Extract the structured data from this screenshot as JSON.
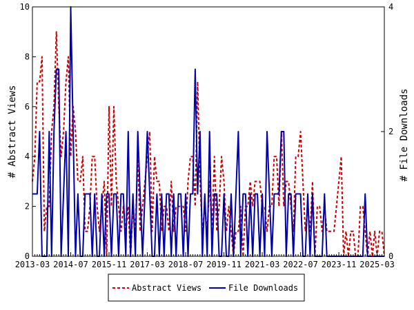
{
  "chart_data": {
    "type": "line",
    "title": "",
    "xlabel": "",
    "ylabel_left": "# Abstract Views",
    "ylabel_right": "# File Downloads",
    "x_start": "2013-03",
    "x_end": "2025-06",
    "x_tick_labels": [
      "2013-03",
      "2014-07",
      "2015-11",
      "2017-03",
      "2018-07",
      "2019-11",
      "2021-03",
      "2022-07",
      "2023-11",
      "2025-03"
    ],
    "ylim_left": [
      0,
      10
    ],
    "yticks_left": [
      "0",
      "2",
      "4",
      "6",
      "8",
      "10"
    ],
    "ylim_right": [
      0,
      4
    ],
    "yticks_right": [
      "0",
      "2",
      "4"
    ],
    "legend_position": "bottom-center",
    "grid": false,
    "series": [
      {
        "name": "Abstract Views",
        "axis": "left",
        "color": "#cc0000",
        "style": "dashed",
        "points": [
          [
            "2013-03",
            3
          ],
          [
            "2013-04",
            4
          ],
          [
            "2013-05",
            7
          ],
          [
            "2013-06",
            7
          ],
          [
            "2013-07",
            8
          ],
          [
            "2013-08",
            1
          ],
          [
            "2013-09",
            2
          ],
          [
            "2013-10",
            2
          ],
          [
            "2013-11",
            5
          ],
          [
            "2013-12",
            6
          ],
          [
            "2014-01",
            9
          ],
          [
            "2014-02",
            6
          ],
          [
            "2014-03",
            4
          ],
          [
            "2014-04",
            5
          ],
          [
            "2014-05",
            7
          ],
          [
            "2014-06",
            8
          ],
          [
            "2014-07",
            4
          ],
          [
            "2014-08",
            6
          ],
          [
            "2014-09",
            5
          ],
          [
            "2014-10",
            3
          ],
          [
            "2014-11",
            3
          ],
          [
            "2014-12",
            4
          ],
          [
            "2015-01",
            1
          ],
          [
            "2015-02",
            1
          ],
          [
            "2015-03",
            2
          ],
          [
            "2015-04",
            4
          ],
          [
            "2015-05",
            4
          ],
          [
            "2015-06",
            2
          ],
          [
            "2015-07",
            1
          ],
          [
            "2015-08",
            2
          ],
          [
            "2015-09",
            3
          ],
          [
            "2015-10",
            0
          ],
          [
            "2015-11",
            6
          ],
          [
            "2015-12",
            2
          ],
          [
            "2016-01",
            6
          ],
          [
            "2016-02",
            3
          ],
          [
            "2016-03",
            2
          ],
          [
            "2016-04",
            1
          ],
          [
            "2016-05",
            2
          ],
          [
            "2016-06",
            1
          ],
          [
            "2016-07",
            2
          ],
          [
            "2016-08",
            0
          ],
          [
            "2016-09",
            2
          ],
          [
            "2016-10",
            1
          ],
          [
            "2016-11",
            4
          ],
          [
            "2016-12",
            1
          ],
          [
            "2017-01",
            2
          ],
          [
            "2017-02",
            3
          ],
          [
            "2017-03",
            4
          ],
          [
            "2017-04",
            5
          ],
          [
            "2017-05",
            1
          ],
          [
            "2017-06",
            4
          ],
          [
            "2017-07",
            3
          ],
          [
            "2017-08",
            3
          ],
          [
            "2017-09",
            1
          ],
          [
            "2017-10",
            2
          ],
          [
            "2017-11",
            2
          ],
          [
            "2017-12",
            1
          ],
          [
            "2018-01",
            3
          ],
          [
            "2018-02",
            1
          ],
          [
            "2018-03",
            2
          ],
          [
            "2018-04",
            2
          ],
          [
            "2018-05",
            2
          ],
          [
            "2018-06",
            2
          ],
          [
            "2018-07",
            1
          ],
          [
            "2018-08",
            3
          ],
          [
            "2018-09",
            4
          ],
          [
            "2018-10",
            4
          ],
          [
            "2018-11",
            2
          ],
          [
            "2018-12",
            7
          ],
          [
            "2019-01",
            3
          ],
          [
            "2019-02",
            1
          ],
          [
            "2019-03",
            2
          ],
          [
            "2019-04",
            1
          ],
          [
            "2019-05",
            3
          ],
          [
            "2019-06",
            1
          ],
          [
            "2019-07",
            4
          ],
          [
            "2019-08",
            1
          ],
          [
            "2019-09",
            2
          ],
          [
            "2019-10",
            4
          ],
          [
            "2019-11",
            3
          ],
          [
            "2019-12",
            1
          ],
          [
            "2020-01",
            2
          ],
          [
            "2020-02",
            1
          ],
          [
            "2020-03",
            0
          ],
          [
            "2020-04",
            1
          ],
          [
            "2020-05",
            1
          ],
          [
            "2020-06",
            2
          ],
          [
            "2020-07",
            0
          ],
          [
            "2020-08",
            2
          ],
          [
            "2020-09",
            2
          ],
          [
            "2020-10",
            3
          ],
          [
            "2020-11",
            2
          ],
          [
            "2020-12",
            3
          ],
          [
            "2021-01",
            3
          ],
          [
            "2021-02",
            3
          ],
          [
            "2021-03",
            2
          ],
          [
            "2021-04",
            2
          ],
          [
            "2021-05",
            1
          ],
          [
            "2021-06",
            2
          ],
          [
            "2021-07",
            2
          ],
          [
            "2021-08",
            4
          ],
          [
            "2021-09",
            4
          ],
          [
            "2021-10",
            2
          ],
          [
            "2021-11",
            5
          ],
          [
            "2021-12",
            2
          ],
          [
            "2022-01",
            3
          ],
          [
            "2022-02",
            3
          ],
          [
            "2022-03",
            2
          ],
          [
            "2022-04",
            1
          ],
          [
            "2022-05",
            4
          ],
          [
            "2022-06",
            4
          ],
          [
            "2022-07",
            5
          ],
          [
            "2022-08",
            3
          ],
          [
            "2022-09",
            1
          ],
          [
            "2022-10",
            2
          ],
          [
            "2022-11",
            1
          ],
          [
            "2022-12",
            3
          ],
          [
            "2023-01",
            0
          ],
          [
            "2023-02",
            2
          ],
          [
            "2023-03",
            2
          ],
          [
            "2023-04",
            1
          ],
          [
            "2023-05",
            2
          ],
          [
            "2023-06",
            1
          ],
          [
            "2023-07",
            1
          ],
          [
            "2023-08",
            1
          ],
          [
            "2023-09",
            1
          ],
          [
            "2023-10",
            2
          ],
          [
            "2023-11",
            3
          ],
          [
            "2023-12",
            4
          ],
          [
            "2024-01",
            0
          ],
          [
            "2024-02",
            1
          ],
          [
            "2024-03",
            0
          ],
          [
            "2024-04",
            1
          ],
          [
            "2024-05",
            1
          ],
          [
            "2024-06",
            0
          ],
          [
            "2024-07",
            0
          ],
          [
            "2024-08",
            2
          ],
          [
            "2024-09",
            2
          ],
          [
            "2024-10",
            1
          ],
          [
            "2024-11",
            0
          ],
          [
            "2024-12",
            1
          ],
          [
            "2025-01",
            0
          ],
          [
            "2025-02",
            1
          ],
          [
            "2025-03",
            0
          ],
          [
            "2025-04",
            1
          ],
          [
            "2025-05",
            1
          ],
          [
            "2025-06",
            0
          ]
        ]
      },
      {
        "name": "File Downloads",
        "axis": "right",
        "color": "#0000aa",
        "style": "solid",
        "points": [
          [
            "2013-03",
            1
          ],
          [
            "2013-04",
            1
          ],
          [
            "2013-05",
            1
          ],
          [
            "2013-06",
            2
          ],
          [
            "2013-07",
            0
          ],
          [
            "2013-08",
            0
          ],
          [
            "2013-09",
            0
          ],
          [
            "2013-10",
            2
          ],
          [
            "2013-11",
            0
          ],
          [
            "2013-12",
            2
          ],
          [
            "2014-01",
            3
          ],
          [
            "2014-02",
            3
          ],
          [
            "2014-03",
            0
          ],
          [
            "2014-04",
            1
          ],
          [
            "2014-05",
            2
          ],
          [
            "2014-06",
            0
          ],
          [
            "2014-07",
            4
          ],
          [
            "2014-08",
            2
          ],
          [
            "2014-09",
            0
          ],
          [
            "2014-10",
            1
          ],
          [
            "2014-11",
            0
          ],
          [
            "2014-12",
            0
          ],
          [
            "2015-01",
            1
          ],
          [
            "2015-02",
            1
          ],
          [
            "2015-03",
            1
          ],
          [
            "2015-04",
            0
          ],
          [
            "2015-05",
            1
          ],
          [
            "2015-06",
            0
          ],
          [
            "2015-07",
            0
          ],
          [
            "2015-08",
            1
          ],
          [
            "2015-09",
            0
          ],
          [
            "2015-10",
            1
          ],
          [
            "2015-11",
            1
          ],
          [
            "2015-12",
            0
          ],
          [
            "2016-01",
            1
          ],
          [
            "2016-02",
            1
          ],
          [
            "2016-03",
            0
          ],
          [
            "2016-04",
            1
          ],
          [
            "2016-05",
            1
          ],
          [
            "2016-06",
            0
          ],
          [
            "2016-07",
            2
          ],
          [
            "2016-08",
            0
          ],
          [
            "2016-09",
            1
          ],
          [
            "2016-10",
            0
          ],
          [
            "2016-11",
            2
          ],
          [
            "2016-12",
            1
          ],
          [
            "2017-01",
            0
          ],
          [
            "2017-02",
            1
          ],
          [
            "2017-03",
            2
          ],
          [
            "2017-04",
            1
          ],
          [
            "2017-05",
            0
          ],
          [
            "2017-06",
            0
          ],
          [
            "2017-07",
            1
          ],
          [
            "2017-08",
            0
          ],
          [
            "2017-09",
            1
          ],
          [
            "2017-10",
            0
          ],
          [
            "2017-11",
            1
          ],
          [
            "2017-12",
            1
          ],
          [
            "2018-01",
            0
          ],
          [
            "2018-02",
            1
          ],
          [
            "2018-03",
            0
          ],
          [
            "2018-04",
            1
          ],
          [
            "2018-05",
            1
          ],
          [
            "2018-06",
            0
          ],
          [
            "2018-07",
            1
          ],
          [
            "2018-08",
            0
          ],
          [
            "2018-09",
            1
          ],
          [
            "2018-10",
            1
          ],
          [
            "2018-11",
            3
          ],
          [
            "2018-12",
            1
          ],
          [
            "2019-01",
            2
          ],
          [
            "2019-02",
            0
          ],
          [
            "2019-03",
            1
          ],
          [
            "2019-04",
            0
          ],
          [
            "2019-05",
            2
          ],
          [
            "2019-06",
            0
          ],
          [
            "2019-07",
            1
          ],
          [
            "2019-08",
            1
          ],
          [
            "2019-09",
            0
          ],
          [
            "2019-10",
            0
          ],
          [
            "2019-11",
            1
          ],
          [
            "2019-12",
            0
          ],
          [
            "2020-01",
            0
          ],
          [
            "2020-02",
            1
          ],
          [
            "2020-03",
            0
          ],
          [
            "2020-04",
            1
          ],
          [
            "2020-05",
            2
          ],
          [
            "2020-06",
            0
          ],
          [
            "2020-07",
            1
          ],
          [
            "2020-08",
            1
          ],
          [
            "2020-09",
            0
          ],
          [
            "2020-10",
            1
          ],
          [
            "2020-11",
            0
          ],
          [
            "2020-12",
            1
          ],
          [
            "2021-01",
            1
          ],
          [
            "2021-02",
            0
          ],
          [
            "2021-03",
            1
          ],
          [
            "2021-04",
            0
          ],
          [
            "2021-05",
            2
          ],
          [
            "2021-06",
            1
          ],
          [
            "2021-07",
            0
          ],
          [
            "2021-08",
            1
          ],
          [
            "2021-09",
            1
          ],
          [
            "2021-10",
            1
          ],
          [
            "2021-11",
            2
          ],
          [
            "2021-12",
            2
          ],
          [
            "2022-01",
            0
          ],
          [
            "2022-02",
            1
          ],
          [
            "2022-03",
            1
          ],
          [
            "2022-04",
            0
          ],
          [
            "2022-05",
            1
          ],
          [
            "2022-06",
            1
          ],
          [
            "2022-07",
            1
          ],
          [
            "2022-08",
            0
          ],
          [
            "2022-09",
            0
          ],
          [
            "2022-10",
            1
          ],
          [
            "2022-11",
            0
          ],
          [
            "2022-12",
            1
          ],
          [
            "2023-01",
            0
          ],
          [
            "2023-02",
            0
          ],
          [
            "2023-03",
            0
          ],
          [
            "2023-04",
            0
          ],
          [
            "2023-05",
            1
          ],
          [
            "2023-06",
            0
          ],
          [
            "2023-07",
            0
          ],
          [
            "2023-08",
            0
          ],
          [
            "2023-09",
            0
          ],
          [
            "2023-10",
            0
          ],
          [
            "2023-11",
            0
          ],
          [
            "2023-12",
            0
          ],
          [
            "2024-01",
            0
          ],
          [
            "2024-02",
            0
          ],
          [
            "2024-03",
            0
          ],
          [
            "2024-04",
            0
          ],
          [
            "2024-05",
            0
          ],
          [
            "2024-06",
            0
          ],
          [
            "2024-07",
            0
          ],
          [
            "2024-08",
            0
          ],
          [
            "2024-09",
            0
          ],
          [
            "2024-10",
            1
          ],
          [
            "2024-11",
            0
          ],
          [
            "2024-12",
            0
          ],
          [
            "2025-01",
            0
          ],
          [
            "2025-02",
            0
          ],
          [
            "2025-03",
            0
          ],
          [
            "2025-04",
            0
          ],
          [
            "2025-05",
            0
          ],
          [
            "2025-06",
            0
          ]
        ]
      }
    ]
  }
}
